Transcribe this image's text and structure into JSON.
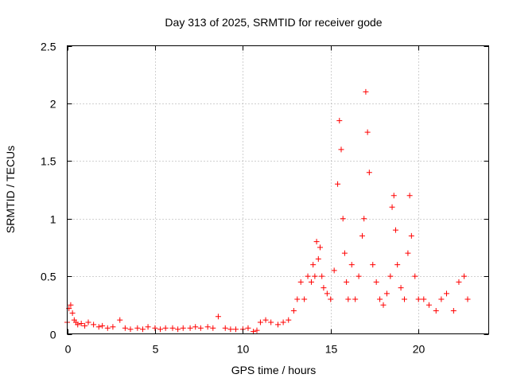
{
  "chart_data": {
    "type": "scatter",
    "title": "Day 313 of 2025, SRMTID for receiver gode",
    "xlabel": "GPS time / hours",
    "ylabel": "SRMTID / TECUs",
    "xlim": [
      0,
      24
    ],
    "ylim": [
      0,
      2.5
    ],
    "x_ticks": [
      0,
      5,
      10,
      15,
      20
    ],
    "x_tick_labels": [
      "0",
      "5",
      "10",
      "15",
      "20"
    ],
    "y_ticks": [
      0,
      0.5,
      1,
      1.5,
      2,
      2.5
    ],
    "y_tick_labels": [
      "0",
      "0.5",
      "1",
      "1.5",
      "2",
      "2.5"
    ],
    "grid": true,
    "marker": "+",
    "series": [
      {
        "name": "SRMTID",
        "color": "#ff0000",
        "x": [
          0.0,
          0.1,
          0.2,
          0.3,
          0.4,
          0.5,
          0.6,
          0.8,
          1.0,
          1.2,
          1.5,
          1.8,
          2.0,
          2.3,
          2.6,
          3.0,
          3.3,
          3.6,
          4.0,
          4.3,
          4.6,
          5.0,
          5.3,
          5.6,
          6.0,
          6.3,
          6.6,
          7.0,
          7.3,
          7.6,
          8.0,
          8.3,
          8.6,
          9.0,
          9.3,
          9.6,
          10.0,
          10.3,
          10.6,
          10.8,
          11.0,
          11.3,
          11.6,
          12.0,
          12.3,
          12.6,
          12.9,
          13.1,
          13.3,
          13.5,
          13.7,
          13.9,
          14.0,
          14.1,
          14.2,
          14.3,
          14.4,
          14.5,
          14.6,
          14.8,
          15.0,
          15.2,
          15.4,
          15.5,
          15.6,
          15.7,
          15.8,
          15.9,
          16.0,
          16.2,
          16.4,
          16.6,
          16.8,
          16.9,
          17.0,
          17.1,
          17.2,
          17.4,
          17.6,
          17.8,
          18.0,
          18.2,
          18.4,
          18.5,
          18.6,
          18.7,
          18.8,
          19.0,
          19.2,
          19.4,
          19.5,
          19.6,
          19.8,
          20.0,
          20.3,
          20.6,
          21.0,
          21.3,
          21.6,
          22.0,
          22.3,
          22.6,
          22.8
        ],
        "y": [
          0.1,
          0.22,
          0.25,
          0.18,
          0.12,
          0.1,
          0.08,
          0.09,
          0.07,
          0.1,
          0.08,
          0.06,
          0.07,
          0.05,
          0.06,
          0.12,
          0.05,
          0.04,
          0.05,
          0.04,
          0.06,
          0.05,
          0.04,
          0.05,
          0.05,
          0.04,
          0.05,
          0.05,
          0.06,
          0.05,
          0.06,
          0.05,
          0.15,
          0.05,
          0.04,
          0.04,
          0.04,
          0.05,
          0.02,
          0.03,
          0.1,
          0.12,
          0.1,
          0.08,
          0.1,
          0.12,
          0.2,
          0.3,
          0.45,
          0.3,
          0.5,
          0.45,
          0.6,
          0.5,
          0.8,
          0.65,
          0.75,
          0.5,
          0.4,
          0.35,
          0.3,
          0.55,
          1.3,
          1.85,
          1.6,
          1.0,
          0.7,
          0.45,
          0.3,
          0.6,
          0.3,
          0.5,
          0.85,
          1.0,
          2.1,
          1.75,
          1.4,
          0.6,
          0.45,
          0.3,
          0.25,
          0.35,
          0.5,
          1.1,
          1.2,
          0.9,
          0.6,
          0.4,
          0.3,
          0.7,
          1.2,
          0.85,
          0.5,
          0.3,
          0.3,
          0.25,
          0.2,
          0.3,
          0.35,
          0.2,
          0.45,
          0.5,
          0.3
        ]
      }
    ]
  }
}
